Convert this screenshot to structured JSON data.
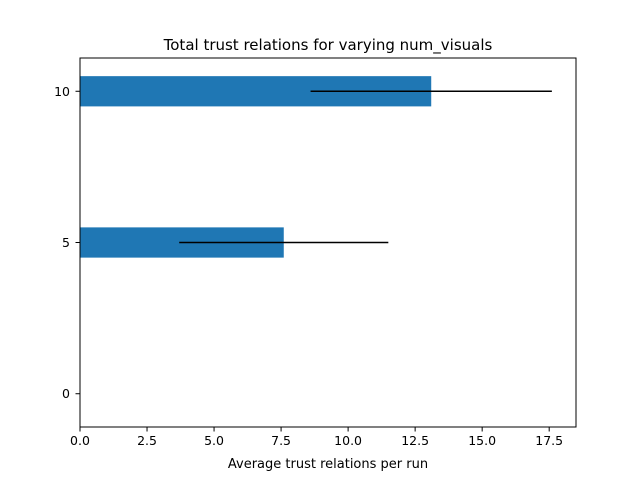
{
  "chart_data": {
    "type": "bar",
    "orientation": "horizontal",
    "title": "Total trust relations for varying num_visuals",
    "xlabel": "Average trust relations per run",
    "ylabel": "",
    "categories": [
      "0",
      "5",
      "10"
    ],
    "category_values": [
      0,
      5,
      10
    ],
    "values": [
      0,
      7.6,
      13.1
    ],
    "error": [
      0,
      3.9,
      4.5
    ],
    "xlim": [
      0,
      18.5
    ],
    "ylim": [
      11.1,
      -1.1
    ],
    "x_ticks": [
      0.0,
      2.5,
      5.0,
      7.5,
      10.0,
      12.5,
      15.0,
      17.5
    ],
    "x_tick_labels": [
      "0.0",
      "2.5",
      "5.0",
      "7.5",
      "10.0",
      "12.5",
      "15.0",
      "17.5"
    ],
    "y_tick_labels": [
      "0",
      "5",
      "10"
    ],
    "bar_height_units": 1.0,
    "bar_color": "#1f77b4",
    "error_color": "#000000",
    "grid": false,
    "legend": "none"
  }
}
